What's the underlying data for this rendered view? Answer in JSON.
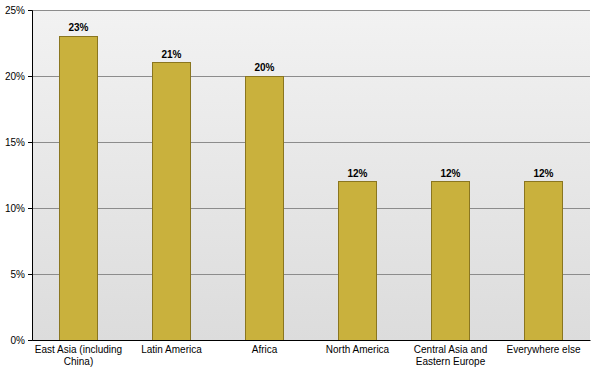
{
  "chart_data": {
    "type": "bar",
    "categories": [
      "East Asia (including China)",
      "Latin America",
      "Africa",
      "North America",
      "Central Asia and Eastern Europe",
      "Everywhere else"
    ],
    "values": [
      23,
      21,
      20,
      12,
      12,
      12
    ],
    "value_labels": [
      "23%",
      "21%",
      "20%",
      "12%",
      "12%",
      "12%"
    ],
    "data_labels": true,
    "color": "#c9b13d",
    "ylim": [
      0,
      25
    ],
    "yticks": [
      {
        "value": 0,
        "label": "0%"
      },
      {
        "value": 5,
        "label": "5%"
      },
      {
        "value": 10,
        "label": "10%"
      },
      {
        "value": 15,
        "label": "15%"
      },
      {
        "value": 20,
        "label": "20%"
      },
      {
        "value": 25,
        "label": "25%"
      }
    ],
    "grid": true
  }
}
